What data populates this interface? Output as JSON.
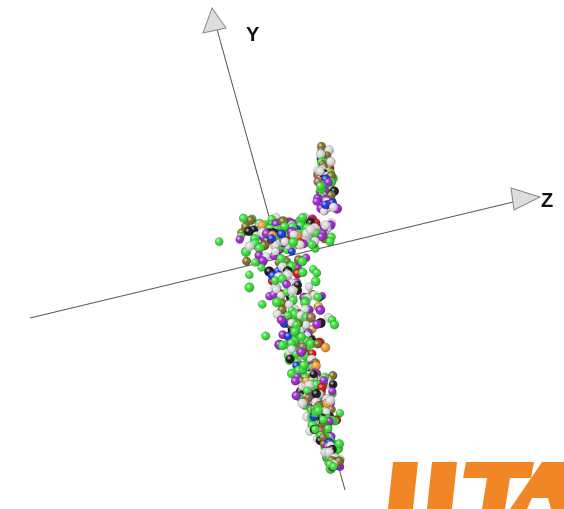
{
  "chart_data": {
    "type": "scatter",
    "projection": "3d",
    "axes": {
      "y_label": "Y",
      "z_label": "Z",
      "x_label": ""
    },
    "grid": false,
    "legend": "none",
    "series": [
      {
        "color": "#33dd33",
        "count": 230
      },
      {
        "color": "#d9d9d9",
        "count": 170
      },
      {
        "color": "#9922cc",
        "count": 95
      },
      {
        "color": "#7a6a20",
        "count": 75
      },
      {
        "color": "#111111",
        "count": 35
      },
      {
        "color": "#cc1111",
        "count": 25
      },
      {
        "color": "#1133dd",
        "count": 25
      },
      {
        "color": "#ee9933",
        "count": 14
      },
      {
        "color": "#9a6a4a",
        "count": 12
      }
    ]
  },
  "watermark": {
    "text": "IITA",
    "color": "#f07a10"
  }
}
